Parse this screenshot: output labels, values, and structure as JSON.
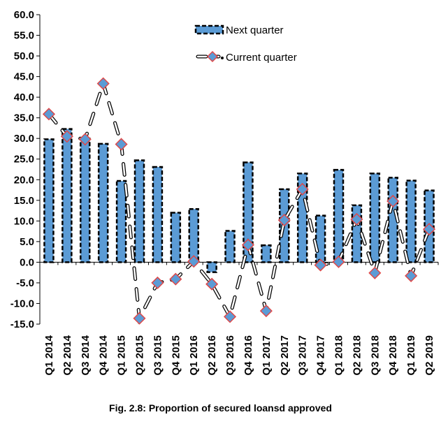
{
  "caption": "Fig. 2.8: Proportion of secured loansd approved",
  "chart_data": {
    "type": "bar",
    "title": "",
    "xlabel": "",
    "ylabel": "",
    "ylim": [
      -15,
      60
    ],
    "yticks": [
      -15.0,
      -10.0,
      -5.0,
      0.0,
      5.0,
      10.0,
      15.0,
      20.0,
      25.0,
      30.0,
      35.0,
      40.0,
      45.0,
      50.0,
      55.0,
      60.0
    ],
    "ytick_labels": [
      "-15.0",
      "-10.0",
      "-5.0",
      "0.0",
      "5.0",
      "10.0",
      "15.0",
      "20.0",
      "25.0",
      "30.0",
      "35.0",
      "40.0",
      "45.0",
      "50.0",
      "55.0",
      "60.0"
    ],
    "grid": false,
    "legend_position": "top-right",
    "categories": [
      "Q1 2014",
      "Q2 2014",
      "Q3 2014",
      "Q4 2014",
      "Q1 2015",
      "Q2 2015",
      "Q3 2015",
      "Q4 2015",
      "Q1 2016",
      "Q2 2016",
      "Q3 2016",
      "Q4 2016",
      "Q1 2017",
      "Q2 2017",
      "Q3 2017",
      "Q4 2017",
      "Q1 2018",
      "Q2 2018",
      "Q3 2018",
      "Q4 2018",
      "Q1 2019",
      "Q2 2019"
    ],
    "series": [
      {
        "name": "Next quarter",
        "type": "bar",
        "color": "#5b9bd5",
        "values": [
          29.8,
          32.3,
          30.0,
          28.7,
          19.7,
          24.7,
          23.1,
          12.0,
          12.9,
          -2.4,
          7.6,
          24.2,
          4.1,
          17.7,
          21.5,
          11.3,
          22.4,
          13.8,
          21.5,
          20.5,
          19.8,
          17.4
        ]
      },
      {
        "name": "Current quarter",
        "type": "line",
        "color": "#e04848",
        "marker": "diamond",
        "values": [
          35.9,
          30.5,
          29.8,
          43.3,
          28.6,
          -13.6,
          -5.0,
          -4.1,
          0.2,
          -5.3,
          -13.2,
          4.2,
          -11.8,
          10.2,
          17.7,
          -0.7,
          0.1,
          10.4,
          -2.6,
          14.8,
          -3.3,
          8.0
        ]
      }
    ]
  }
}
